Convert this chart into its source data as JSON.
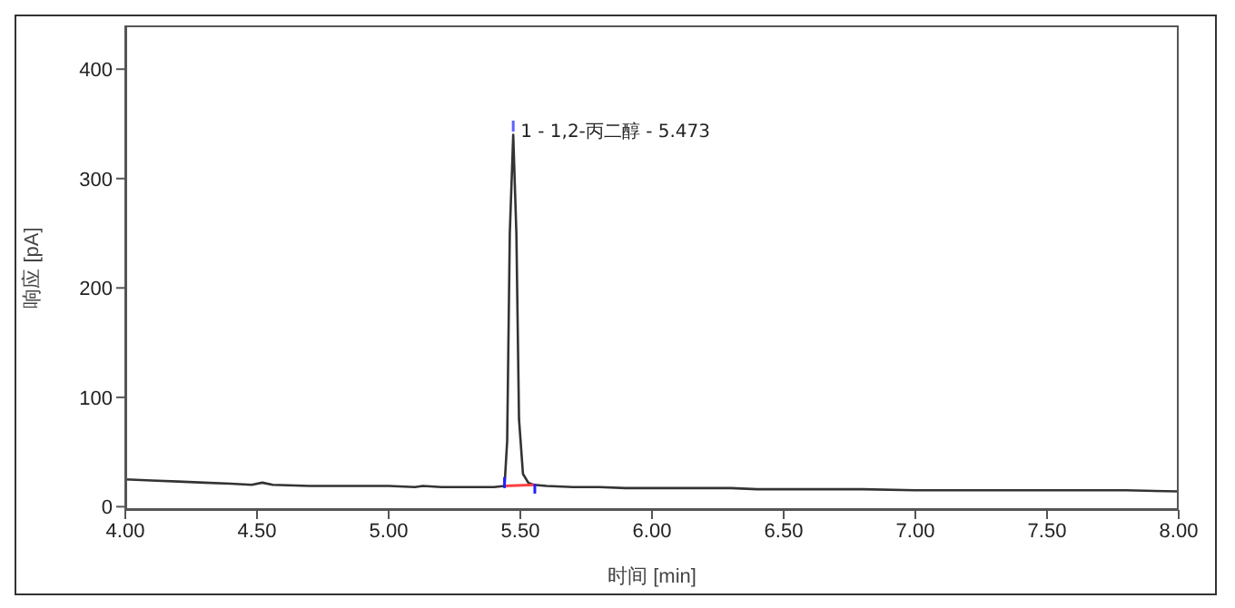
{
  "chart_data": {
    "type": "line",
    "xlabel": "时间 [min]",
    "ylabel": "响应 [pA]",
    "xlim": [
      4.0,
      8.0
    ],
    "xticks": [
      {
        "value": 4.0,
        "label": "4.00"
      },
      {
        "value": 4.5,
        "label": "4.50"
      },
      {
        "value": 5.0,
        "label": "5.00"
      },
      {
        "value": 5.5,
        "label": "5.50"
      },
      {
        "value": 6.0,
        "label": "6.00"
      },
      {
        "value": 6.5,
        "label": "6.50"
      },
      {
        "value": 7.0,
        "label": "7.00"
      },
      {
        "value": 7.5,
        "label": "7.50"
      },
      {
        "value": 8.0,
        "label": "8.00"
      }
    ],
    "ylim": [
      -3,
      440
    ],
    "yticks": [
      0,
      100,
      200,
      300,
      400
    ],
    "marker": "none",
    "line_style": "solid",
    "annotations": [
      {
        "text": "1 - 1,2-丙二醇 - 5.473",
        "x": 5.473,
        "y": 345
      }
    ],
    "series": [
      {
        "color": "#333333",
        "x": [
          4.0,
          4.1,
          4.2,
          4.3,
          4.4,
          4.48,
          4.52,
          4.56,
          4.7,
          4.8,
          4.9,
          5.0,
          5.1,
          5.13,
          5.2,
          5.3,
          5.4,
          5.44,
          5.45,
          5.46,
          5.473,
          5.485,
          5.495,
          5.51,
          5.53,
          5.55,
          5.6,
          5.7,
          5.8,
          5.9,
          6.0,
          6.2,
          6.3,
          6.4,
          6.6,
          6.8,
          7.0,
          7.2,
          7.4,
          7.6,
          7.8,
          8.0
        ],
        "values": [
          25,
          24,
          23,
          22,
          21,
          20,
          22,
          20,
          19,
          19,
          19,
          19,
          18,
          19,
          18,
          18,
          18,
          19,
          60,
          250,
          340,
          250,
          80,
          30,
          22,
          20,
          19,
          18,
          18,
          17,
          17,
          17,
          17,
          16,
          16,
          16,
          15,
          15,
          15,
          15,
          15,
          14
        ]
      },
      {
        "color": "#ff4040",
        "x": [
          5.44,
          5.555
        ],
        "values": [
          19,
          20
        ]
      },
      {
        "color": "#2020ff",
        "x": [
          5.44,
          5.44
        ],
        "values": [
          17,
          27
        ]
      },
      {
        "color": "#2020ff",
        "x": [
          5.555,
          5.555
        ],
        "values": [
          12,
          21
        ]
      },
      {
        "color": "#6060ff",
        "x": [
          5.473,
          5.473
        ],
        "values": [
          343,
          353
        ]
      }
    ]
  }
}
